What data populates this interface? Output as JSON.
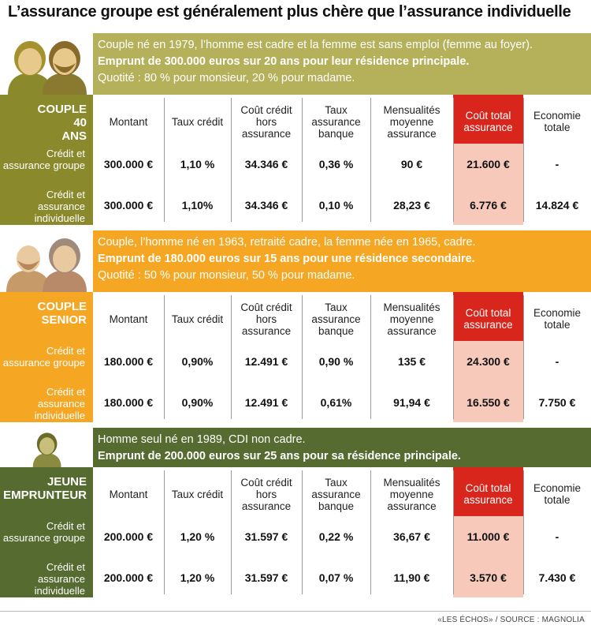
{
  "title": "L’assurance groupe est généralement plus chère que l’assurance individuelle",
  "colors": {
    "olive": "#8a8a2c",
    "olive_light": "#b5b05a",
    "orange": "#f5a623",
    "green": "#556b2f",
    "red_header": "#d8261c",
    "pink_column": "#f6c9bb"
  },
  "headers": {
    "montant": "Montant",
    "taux_credit": "Taux crédit",
    "cout_hors": "Coût crédit hors assurance",
    "taux_assurance": "Taux assurance banque",
    "mensualites": "Mensualités moyenne assurance",
    "cout_total": "Coût total assurance",
    "economie": "Economie totale"
  },
  "row_labels": {
    "groupe": "Crédit et assurance groupe",
    "individuelle": "Crédit et assurance individuelle"
  },
  "sections": [
    {
      "label": "COUPLE 40 ANS",
      "info_line1": "Couple né en 1979, l’homme est cadre et la femme est sans emploi (femme au foyer).",
      "info_line2": "Emprunt de 300.000 euros sur 20 ans pour leur résidence principale.",
      "info_line3": "Quotité : 80 % pour monsieur, 20 % pour madame.",
      "groupe": [
        "300.000 €",
        "1,10 %",
        "34.346 €",
        "0,36 %",
        "90 €",
        "21.600 €",
        "-"
      ],
      "individuelle": [
        "300.000 €",
        "1,10%",
        "34.346 €",
        "0,10 %",
        "28,23 €",
        "6.776 €",
        "14.824 €"
      ]
    },
    {
      "label": "COUPLE SENIOR",
      "info_line1": "Couple, l’homme né en 1963, retraité cadre, la femme née en 1965, cadre.",
      "info_line2": "Emprunt de 180.000 euros sur 15 ans pour une résidence secondaire.",
      "info_line3": "Quotité : 50 % pour monsieur, 50 % pour madame.",
      "groupe": [
        "180.000 €",
        "0,90%",
        "12.491 €",
        "0,90 %",
        "135 €",
        "24.300 €",
        "-"
      ],
      "individuelle": [
        "180.000 €",
        "0,90%",
        "12.491 €",
        "0,61%",
        "91,94 €",
        "16.550 €",
        "7.750 €"
      ]
    },
    {
      "label": "JEUNE EMPRUNTEUR",
      "info_line1": "Homme seul né en 1989, CDI non cadre.",
      "info_line2": "Emprunt de 200.000 euros sur 25 ans pour sa résidence principale.",
      "info_line3": "",
      "groupe": [
        "200.000 €",
        "1,20 %",
        "31.597 €",
        "0,22 %",
        "36,67 €",
        "11.000 €",
        "-"
      ],
      "individuelle": [
        "200.000 €",
        "1,20 %",
        "31.597 €",
        "0,07 %",
        "11,90 €",
        "3.570 €",
        "7.430 €"
      ]
    }
  ],
  "chart_data": {
    "type": "table",
    "title": "L’assurance groupe est généralement plus chère que l’assurance individuelle",
    "columns": [
      "Montant",
      "Taux crédit",
      "Coût crédit hors assurance",
      "Taux assurance banque",
      "Mensualités moyenne assurance",
      "Coût total assurance",
      "Economie totale"
    ],
    "rows": [
      {
        "group": "COUPLE 40 ANS",
        "type": "Crédit et assurance groupe",
        "values": [
          "300.000 €",
          "1,10 %",
          "34.346 €",
          "0,36 %",
          "90 €",
          "21.600 €",
          "-"
        ]
      },
      {
        "group": "COUPLE 40 ANS",
        "type": "Crédit et assurance individuelle",
        "values": [
          "300.000 €",
          "1,10%",
          "34.346 €",
          "0,10 %",
          "28,23 €",
          "6.776 €",
          "14.824 €"
        ]
      },
      {
        "group": "COUPLE SENIOR",
        "type": "Crédit et assurance groupe",
        "values": [
          "180.000 €",
          "0,90%",
          "12.491 €",
          "0,90 %",
          "135 €",
          "24.300 €",
          "-"
        ]
      },
      {
        "group": "COUPLE SENIOR",
        "type": "Crédit et assurance individuelle",
        "values": [
          "180.000 €",
          "0,90%",
          "12.491 €",
          "0,61%",
          "91,94 €",
          "16.550 €",
          "7.750 €"
        ]
      },
      {
        "group": "JEUNE EMPRUNTEUR",
        "type": "Crédit et assurance groupe",
        "values": [
          "200.000 €",
          "1,20 %",
          "31.597 €",
          "0,22 %",
          "36,67 €",
          "11.000 €",
          "-"
        ]
      },
      {
        "group": "JEUNE EMPRUNTEUR",
        "type": "Crédit et assurance individuelle",
        "values": [
          "200.000 €",
          "1,20 %",
          "31.597 €",
          "0,07 %",
          "11,90 €",
          "3.570 €",
          "7.430 €"
        ]
      }
    ]
  },
  "source": "«LES ÉCHOS» / SOURCE : MAGNOLIA"
}
